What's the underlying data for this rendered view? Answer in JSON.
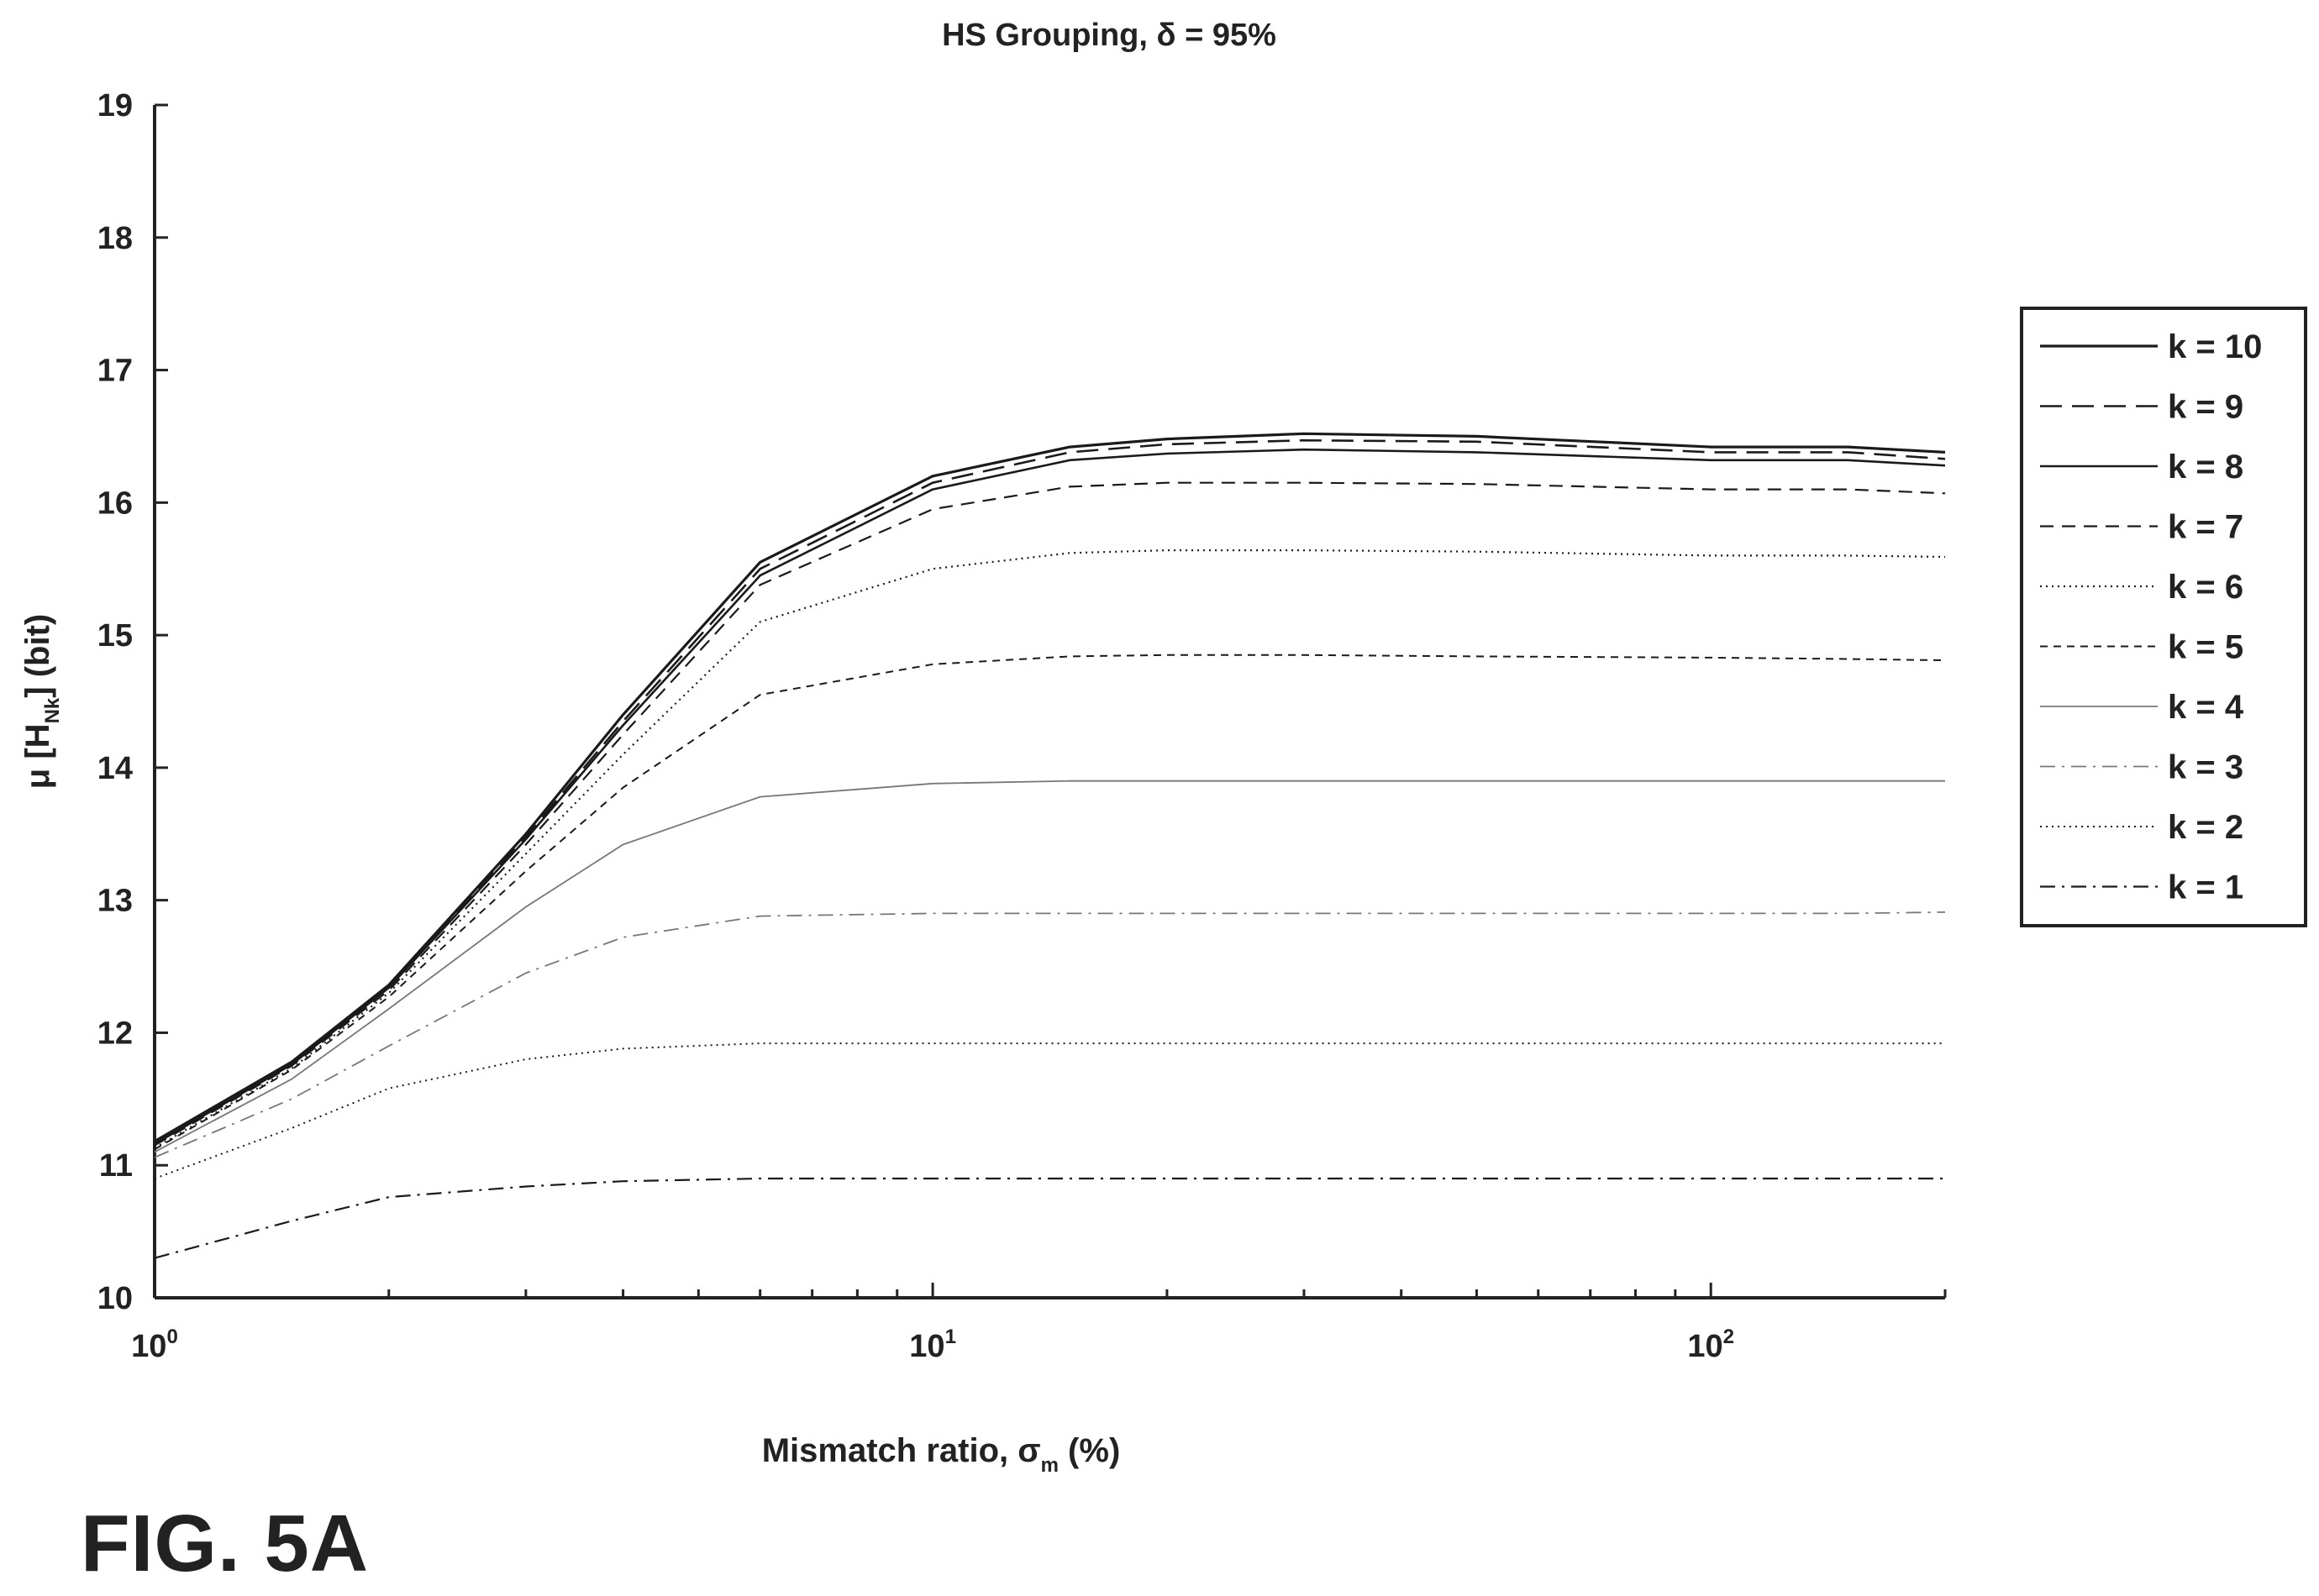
{
  "figure": {
    "caption": "FIG. 5A"
  },
  "chart_data": {
    "type": "line",
    "title": "HS Grouping, δ = 95%",
    "xlabel": "Mismatch ratio, σm (%)",
    "xlabel_main": "Mismatch ratio, σ",
    "xlabel_sub": "m",
    "xlabel_tail": " (%)",
    "ylabel": "μ [HNk] (bit)",
    "ylabel_main": "μ [H",
    "ylabel_sub": "Nk",
    "ylabel_tail": "] (bit)",
    "x_scale": "log",
    "xlim": [
      1,
      200
    ],
    "ylim": [
      10,
      19
    ],
    "x_ticks": [
      {
        "base": "10",
        "exp": "0"
      },
      {
        "base": "10",
        "exp": "1"
      },
      {
        "base": "10",
        "exp": "2"
      }
    ],
    "y_ticks": [
      "10",
      "11",
      "12",
      "13",
      "14",
      "15",
      "16",
      "17",
      "18",
      "19"
    ],
    "grid": false,
    "legend_position": "right",
    "x": [
      1,
      1.5,
      2,
      3,
      4,
      6,
      10,
      15,
      20,
      30,
      50,
      100,
      150,
      200
    ],
    "series": [
      {
        "name": "k = 10",
        "style": "solid",
        "width": 3.2,
        "values": [
          11.18,
          11.78,
          12.36,
          13.5,
          14.4,
          15.55,
          16.2,
          16.42,
          16.48,
          16.52,
          16.5,
          16.42,
          16.42,
          16.38
        ]
      },
      {
        "name": "k = 9",
        "style": "longdash",
        "width": 2.6,
        "values": [
          11.17,
          11.77,
          12.35,
          13.48,
          14.35,
          15.5,
          16.15,
          16.38,
          16.44,
          16.47,
          16.46,
          16.38,
          16.38,
          16.33
        ]
      },
      {
        "name": "k = 8",
        "style": "solid",
        "width": 2.6,
        "values": [
          11.16,
          11.76,
          12.34,
          13.46,
          14.32,
          15.45,
          16.1,
          16.32,
          16.37,
          16.4,
          16.38,
          16.32,
          16.32,
          16.28
        ]
      },
      {
        "name": "k = 7",
        "style": "dash",
        "width": 2.2,
        "values": [
          11.15,
          11.75,
          12.32,
          13.42,
          14.25,
          15.38,
          15.95,
          16.12,
          16.15,
          16.15,
          16.14,
          16.1,
          16.1,
          16.07
        ]
      },
      {
        "name": "k = 6",
        "style": "dot",
        "width": 2.2,
        "values": [
          11.13,
          11.73,
          12.3,
          13.35,
          14.1,
          15.1,
          15.5,
          15.62,
          15.64,
          15.64,
          15.63,
          15.6,
          15.6,
          15.59
        ]
      },
      {
        "name": "k = 5",
        "style": "shortdash",
        "width": 2.0,
        "values": [
          11.12,
          11.72,
          12.27,
          13.22,
          13.85,
          14.55,
          14.78,
          14.84,
          14.85,
          14.85,
          14.84,
          14.83,
          14.82,
          14.81
        ]
      },
      {
        "name": "k = 4",
        "style": "solid",
        "width": 1.8,
        "color": "#777777",
        "values": [
          11.1,
          11.65,
          12.18,
          12.95,
          13.42,
          13.78,
          13.88,
          13.9,
          13.9,
          13.9,
          13.9,
          13.9,
          13.9,
          13.9
        ]
      },
      {
        "name": "k = 3",
        "style": "dashdot",
        "width": 1.8,
        "color": "#777777",
        "values": [
          11.06,
          11.5,
          11.9,
          12.45,
          12.72,
          12.88,
          12.9,
          12.9,
          12.9,
          12.9,
          12.9,
          12.9,
          12.9,
          12.91
        ]
      },
      {
        "name": "k = 2",
        "style": "dot",
        "width": 2.0,
        "values": [
          10.9,
          11.28,
          11.58,
          11.8,
          11.88,
          11.92,
          11.92,
          11.92,
          11.92,
          11.92,
          11.92,
          11.92,
          11.92,
          11.92
        ]
      },
      {
        "name": "k = 1",
        "style": "dashdot",
        "width": 2.2,
        "values": [
          10.3,
          10.58,
          10.76,
          10.84,
          10.88,
          10.9,
          10.9,
          10.9,
          10.9,
          10.9,
          10.9,
          10.9,
          10.9,
          10.9
        ]
      }
    ]
  }
}
